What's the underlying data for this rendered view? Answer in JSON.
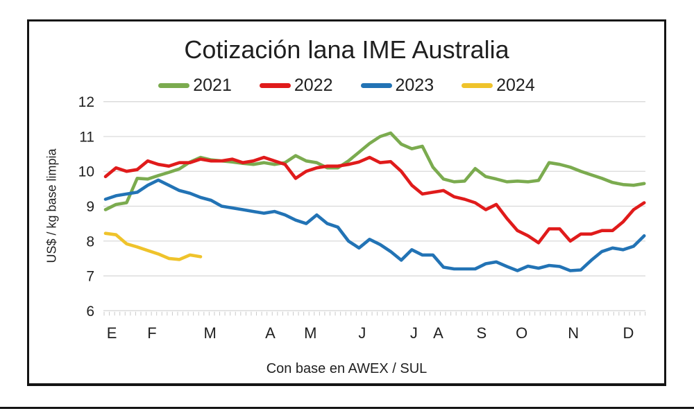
{
  "chart_data": {
    "type": "line",
    "title": "Cotización lana IME Australia",
    "ylabel": "US$ / kg base limpia",
    "xlabel": "Con base en AWEX / SUL",
    "legend_position": "top",
    "grid": "horizontal-only",
    "y_axis": {
      "min": 6,
      "max": 12,
      "ticks": [
        12,
        11,
        10,
        9,
        8,
        7,
        6
      ]
    },
    "x_axis": {
      "unit": "weekly sales, Jan-Dec",
      "month_labels": [
        "E",
        "F",
        "M",
        "A",
        "M",
        "J",
        "J",
        "A",
        "S",
        "O",
        "N",
        "D"
      ],
      "month_week_positions": [
        0.6,
        4.4,
        9.9,
        15.6,
        19.4,
        24.3,
        29.2,
        31.5,
        35.6,
        39.4,
        44.3,
        49.5
      ],
      "weeks": 52
    },
    "series": [
      {
        "name": "2021",
        "color": "#7BAB4F",
        "values": [
          8.9,
          9.05,
          9.1,
          9.8,
          9.78,
          9.88,
          9.97,
          10.07,
          10.27,
          10.4,
          10.33,
          10.3,
          10.27,
          10.23,
          10.2,
          10.25,
          10.2,
          10.25,
          10.45,
          10.3,
          10.25,
          10.1,
          10.1,
          10.3,
          10.55,
          10.8,
          11.0,
          11.1,
          10.78,
          10.65,
          10.72,
          10.12,
          9.78,
          9.7,
          9.72,
          10.08,
          9.85,
          9.78,
          9.7,
          9.72,
          9.7,
          9.74,
          10.25,
          10.2,
          10.12,
          10.0,
          9.9,
          9.8,
          9.68,
          9.62,
          9.6,
          9.65
        ]
      },
      {
        "name": "2022",
        "color": "#E01B1B",
        "values": [
          9.85,
          10.1,
          10.0,
          10.05,
          10.3,
          10.2,
          10.15,
          10.25,
          10.25,
          10.35,
          10.3,
          10.3,
          10.35,
          10.25,
          10.3,
          10.4,
          10.3,
          10.2,
          9.8,
          10.0,
          10.1,
          10.15,
          10.15,
          10.2,
          10.27,
          10.4,
          10.25,
          10.28,
          10.0,
          9.6,
          9.35,
          9.4,
          9.45,
          9.27,
          9.2,
          9.1,
          8.9,
          9.05,
          8.65,
          8.3,
          8.15,
          7.95,
          8.35,
          8.35,
          8.0,
          8.2,
          8.2,
          8.3,
          8.3,
          8.55,
          8.9,
          9.1
        ]
      },
      {
        "name": "2023",
        "color": "#2273B5",
        "values": [
          9.2,
          9.3,
          9.35,
          9.4,
          9.6,
          9.75,
          9.6,
          9.45,
          9.37,
          9.25,
          9.17,
          9.0,
          8.95,
          8.9,
          8.85,
          8.8,
          8.85,
          8.75,
          8.6,
          8.5,
          8.75,
          8.5,
          8.4,
          8.0,
          7.8,
          8.05,
          7.9,
          7.7,
          7.45,
          7.75,
          7.6,
          7.6,
          7.25,
          7.2,
          7.2,
          7.2,
          7.35,
          7.4,
          7.27,
          7.15,
          7.28,
          7.22,
          7.3,
          7.27,
          7.15,
          7.17,
          7.45,
          7.7,
          7.8,
          7.75,
          7.85,
          8.15
        ]
      },
      {
        "name": "2024",
        "color": "#EFC32B",
        "values": [
          8.22,
          8.18,
          7.92,
          7.83,
          7.73,
          7.63,
          7.5,
          7.47,
          7.6,
          7.55
        ]
      }
    ],
    "style_colors": {
      "gridline": "#d9d9d9",
      "minor_tick": "#c9c9c9",
      "text": "#1f1f1f",
      "frame_border": "#141414"
    }
  }
}
